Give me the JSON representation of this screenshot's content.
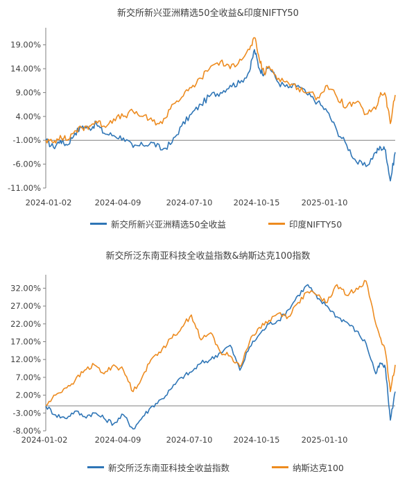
{
  "colors": {
    "blue": "#2e75b6",
    "orange": "#ed8b1f",
    "axis": "#7f7f7f",
    "text": "#404040"
  },
  "chart_data": [
    {
      "type": "line",
      "title": "新交所新兴亚洲精选50全收益&印度NIFTY50",
      "x_labels": [
        "2024-01-02",
        "2024-04-09",
        "2024-07-10",
        "2024-10-15",
        "2025-01-10"
      ],
      "y_ticks": [
        19.0,
        14.0,
        9.0,
        4.0,
        -1.0,
        -6.0,
        -11.0
      ],
      "y_tick_labels": [
        "19.00%",
        "14.00%",
        "9.00%",
        "4.00%",
        "-1.00%",
        "-6.00%",
        "-11.00%"
      ],
      "ylim": [
        -11.0,
        22.0
      ],
      "xlim": [
        0,
        360
      ],
      "series": [
        {
          "name": "新交所新兴亚洲精选50全收益",
          "color": "#2e75b6",
          "x": [
            0,
            8,
            15,
            22,
            30,
            38,
            45,
            52,
            60,
            70,
            80,
            90,
            100,
            110,
            120,
            130,
            140,
            150,
            160,
            170,
            180,
            190,
            200,
            210,
            215,
            220,
            225,
            230,
            240,
            250,
            260,
            270,
            280,
            290,
            300,
            310,
            320,
            330,
            340,
            345,
            350,
            355,
            360
          ],
          "y": [
            -1.0,
            -2.5,
            -1.0,
            -2.0,
            0.5,
            2.0,
            1.5,
            2.5,
            0.5,
            0.0,
            -0.5,
            -2.5,
            -2.0,
            -1.5,
            -3.0,
            -1.5,
            2.0,
            4.5,
            6.5,
            8.5,
            9.0,
            10.5,
            11.0,
            13.5,
            18.0,
            14.0,
            13.0,
            14.5,
            11.0,
            10.0,
            10.5,
            8.5,
            7.0,
            5.0,
            1.0,
            -2.0,
            -5.5,
            -6.5,
            -3.5,
            -2.5,
            -3.0,
            -9.5,
            -3.5
          ]
        },
        {
          "name": "印度NIFTY50",
          "color": "#ed8b1f",
          "x": [
            0,
            8,
            15,
            22,
            30,
            38,
            45,
            52,
            60,
            70,
            80,
            90,
            100,
            110,
            120,
            130,
            140,
            150,
            160,
            170,
            180,
            190,
            200,
            210,
            215,
            220,
            225,
            230,
            240,
            250,
            260,
            270,
            280,
            290,
            300,
            310,
            320,
            330,
            340,
            345,
            350,
            355,
            360
          ],
          "y": [
            -1.0,
            -1.5,
            0.0,
            -1.0,
            1.0,
            1.5,
            2.0,
            3.0,
            2.0,
            3.5,
            4.0,
            5.0,
            4.0,
            3.0,
            2.5,
            6.5,
            8.0,
            10.0,
            12.0,
            14.5,
            15.5,
            14.0,
            16.0,
            18.0,
            20.5,
            16.0,
            13.0,
            14.5,
            12.0,
            11.0,
            10.0,
            9.0,
            8.0,
            10.5,
            8.0,
            6.0,
            7.0,
            4.5,
            5.5,
            9.0,
            8.5,
            2.5,
            8.5
          ]
        }
      ]
    },
    {
      "type": "line",
      "title": "新交所泛东南亚科技全收益指数&纳斯达克100指数",
      "x_labels": [
        "2024-01-02",
        "2024-04-09",
        "2024-07-10",
        "2024-10-15",
        "2025-01-10"
      ],
      "y_ticks": [
        32.0,
        27.0,
        22.0,
        17.0,
        12.0,
        7.0,
        2.0,
        -3.0,
        -8.0
      ],
      "y_tick_labels": [
        "32.00%",
        "27.00%",
        "22.00%",
        "17.00%",
        "12.00%",
        "7.00%",
        "2.00%",
        "-3.00%",
        "-8.00%"
      ],
      "ylim": [
        -8.0,
        35.0
      ],
      "xlim": [
        0,
        360
      ],
      "series": [
        {
          "name": "新交所泛东南亚科技全收益指数",
          "color": "#2e75b6",
          "x": [
            0,
            10,
            20,
            30,
            40,
            50,
            60,
            70,
            80,
            90,
            100,
            110,
            120,
            130,
            140,
            150,
            160,
            170,
            180,
            190,
            200,
            210,
            220,
            230,
            240,
            250,
            260,
            270,
            280,
            290,
            300,
            310,
            320,
            330,
            340,
            345,
            350,
            355,
            360
          ],
          "y": [
            -1.0,
            -3.5,
            -4.5,
            -2.5,
            -4.0,
            -3.0,
            -4.5,
            -6.0,
            -3.5,
            -7.5,
            -4.0,
            -1.0,
            1.0,
            4.0,
            7.0,
            8.5,
            11.0,
            12.0,
            14.0,
            16.0,
            9.0,
            15.5,
            19.0,
            22.0,
            23.0,
            26.0,
            30.0,
            33.0,
            29.0,
            27.0,
            24.0,
            22.5,
            20.0,
            16.5,
            8.0,
            11.0,
            9.5,
            -5.0,
            3.0
          ]
        },
        {
          "name": "纳斯达克100",
          "color": "#ed8b1f",
          "x": [
            0,
            10,
            20,
            30,
            40,
            50,
            60,
            70,
            80,
            90,
            100,
            110,
            120,
            130,
            140,
            150,
            160,
            170,
            180,
            190,
            200,
            210,
            220,
            230,
            240,
            250,
            260,
            270,
            280,
            290,
            300,
            310,
            320,
            330,
            340,
            345,
            350,
            355,
            360
          ],
          "y": [
            -1.0,
            2.0,
            4.0,
            6.0,
            9.0,
            10.5,
            8.0,
            10.5,
            9.0,
            3.0,
            7.5,
            12.5,
            15.0,
            18.0,
            21.0,
            24.5,
            17.5,
            19.5,
            14.0,
            13.0,
            10.0,
            17.0,
            21.0,
            23.0,
            25.0,
            24.0,
            28.0,
            31.0,
            30.0,
            28.0,
            33.0,
            30.0,
            32.0,
            34.0,
            22.0,
            18.0,
            14.0,
            3.0,
            10.5
          ]
        }
      ]
    }
  ]
}
